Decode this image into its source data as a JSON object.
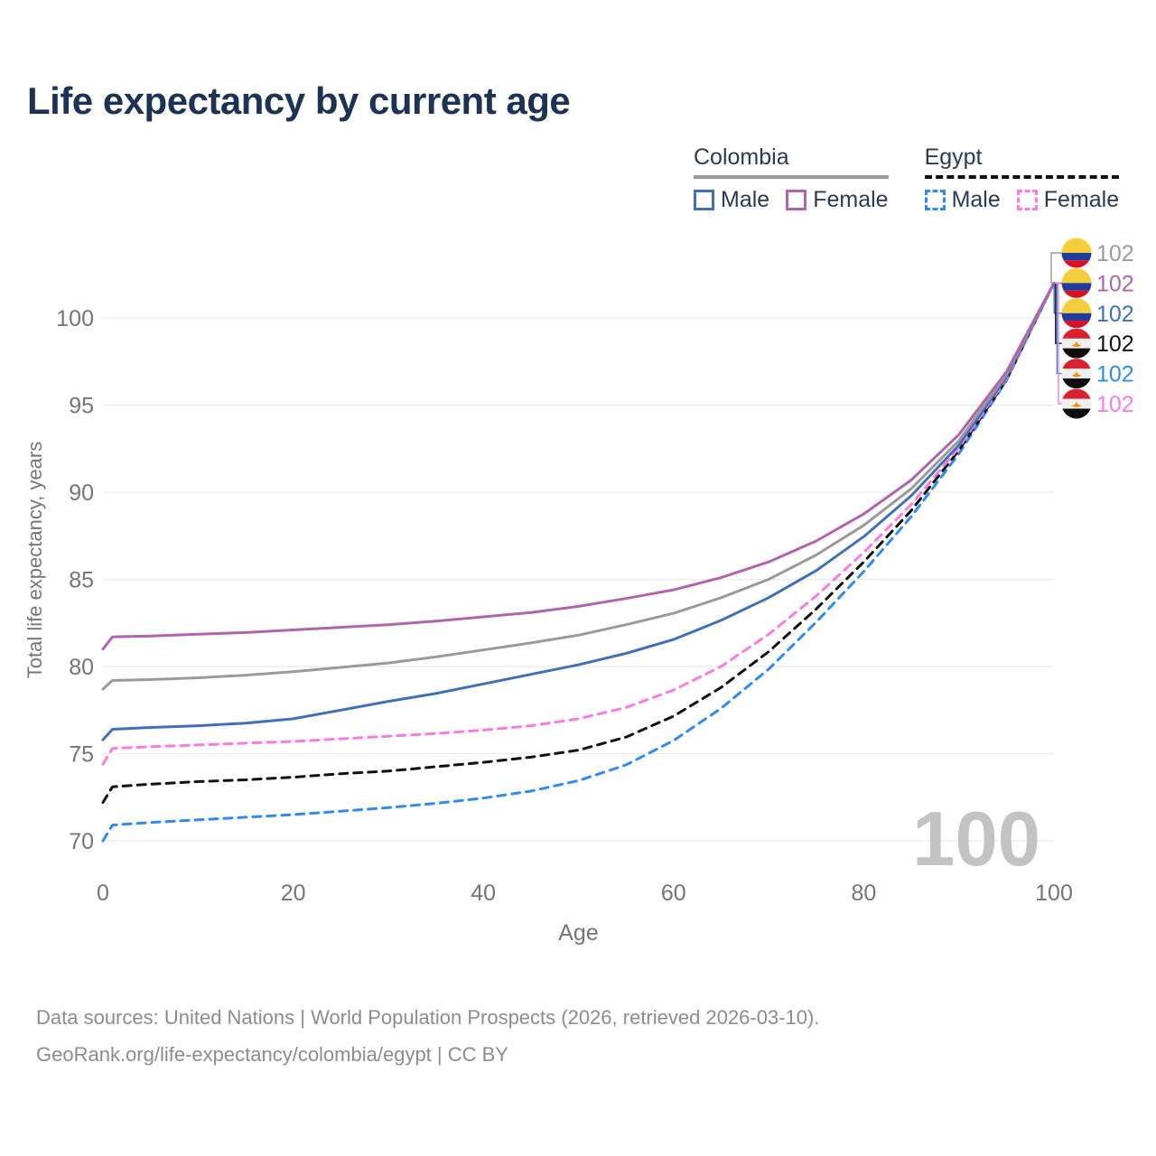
{
  "title": "Life expectancy by current age",
  "legend": {
    "groups": [
      {
        "name": "Colombia",
        "line_style": "solid",
        "line_color": "#9a9a9a",
        "items": [
          {
            "label": "Male",
            "color": "#4170b8",
            "dashed": false
          },
          {
            "label": "Female",
            "color": "#b164ac",
            "dashed": false
          }
        ]
      },
      {
        "name": "Egypt",
        "line_style": "dashed",
        "line_color": "#111111",
        "items": [
          {
            "label": "Male",
            "color": "#2f8af5",
            "dashed": true
          },
          {
            "label": "Female",
            "color": "#fb7be0",
            "dashed": true
          }
        ]
      }
    ]
  },
  "age_counter": "100",
  "axes": {
    "x": {
      "label": "Age",
      "ticks": [
        0,
        20,
        40,
        60,
        80,
        100
      ],
      "range": [
        0,
        100
      ],
      "grid": false
    },
    "y": {
      "label": "Total life expectancy, years",
      "ticks": [
        70,
        75,
        80,
        85,
        90,
        95,
        100
      ],
      "range": [
        69,
        103
      ],
      "grid": true
    }
  },
  "chart_data": {
    "type": "line",
    "title": "Life expectancy by current age",
    "xlabel": "Age",
    "ylabel": "Total life expectancy, years",
    "xlim": [
      0,
      100
    ],
    "ylim": [
      69,
      103
    ],
    "legend_position": "top-right",
    "x": [
      0,
      1,
      5,
      10,
      15,
      20,
      25,
      30,
      35,
      40,
      45,
      50,
      55,
      60,
      65,
      70,
      75,
      80,
      85,
      90,
      95,
      100
    ],
    "series": [
      {
        "name": "Egypt Male",
        "color": "#2f8af5",
        "dashed": true,
        "values": [
          70.0,
          70.9,
          71.05,
          71.2,
          71.35,
          71.5,
          71.7,
          71.9,
          72.15,
          72.45,
          72.85,
          73.45,
          74.35,
          75.75,
          77.6,
          79.85,
          82.55,
          85.45,
          88.6,
          92.2,
          96.4,
          102
        ]
      },
      {
        "name": "Egypt",
        "color": "#111111",
        "dashed": true,
        "values": [
          72.2,
          73.1,
          73.25,
          73.4,
          73.5,
          73.65,
          73.85,
          74.0,
          74.25,
          74.5,
          74.8,
          75.2,
          75.95,
          77.15,
          78.8,
          80.85,
          83.3,
          86.0,
          88.95,
          92.4,
          96.45,
          102
        ]
      },
      {
        "name": "Egypt Female",
        "color": "#fb7be0",
        "dashed": true,
        "values": [
          74.4,
          75.3,
          75.4,
          75.5,
          75.6,
          75.7,
          75.85,
          76.0,
          76.15,
          76.35,
          76.6,
          77.0,
          77.65,
          78.65,
          80.0,
          81.85,
          84.05,
          86.55,
          89.3,
          92.55,
          96.5,
          102
        ]
      },
      {
        "name": "Colombia Male",
        "color": "#4170b8",
        "dashed": false,
        "values": [
          75.8,
          76.4,
          76.5,
          76.6,
          76.75,
          77.0,
          77.5,
          78.0,
          78.45,
          79.0,
          79.55,
          80.1,
          80.75,
          81.55,
          82.65,
          83.95,
          85.5,
          87.45,
          89.8,
          92.7,
          96.6,
          102
        ]
      },
      {
        "name": "Colombia",
        "color": "#9a9a9a",
        "dashed": false,
        "values": [
          78.7,
          79.2,
          79.25,
          79.35,
          79.5,
          79.7,
          79.95,
          80.2,
          80.55,
          80.95,
          81.35,
          81.8,
          82.4,
          83.05,
          83.95,
          85.0,
          86.4,
          88.1,
          90.2,
          92.95,
          96.75,
          102
        ]
      },
      {
        "name": "Colombia Female",
        "color": "#b164ac",
        "dashed": false,
        "values": [
          81.0,
          81.7,
          81.75,
          81.85,
          81.95,
          82.1,
          82.25,
          82.4,
          82.6,
          82.85,
          83.1,
          83.45,
          83.9,
          84.4,
          85.1,
          86.0,
          87.2,
          88.75,
          90.7,
          93.3,
          96.9,
          102
        ]
      }
    ],
    "end_labels": [
      {
        "series": "Colombia",
        "value": "102",
        "color": "#9a9a9a",
        "flag": "colombia"
      },
      {
        "series": "Colombia Female",
        "value": "102",
        "color": "#b164ac",
        "flag": "colombia"
      },
      {
        "series": "Colombia Male",
        "value": "102",
        "color": "#4170b8",
        "flag": "colombia"
      },
      {
        "series": "Egypt",
        "value": "102",
        "color": "#111111",
        "flag": "egypt"
      },
      {
        "series": "Egypt Male",
        "value": "102",
        "color": "#2f8af5",
        "flag": "egypt"
      },
      {
        "series": "Egypt Female",
        "value": "102",
        "color": "#fb7be0",
        "flag": "egypt"
      }
    ]
  },
  "flag_colors": {
    "colombia": {
      "yellow": "#f5ce3e",
      "blue": "#1f3c9e",
      "red": "#d61126"
    },
    "egypt": {
      "red": "#d8232f",
      "white": "#efefef",
      "black": "#0d0d0d",
      "gold": "#e8960f"
    }
  },
  "colors": {
    "title": "#1d3354",
    "legend_text": "#2b3a55",
    "axis_text": "#757575",
    "gridline": "#ebebeb",
    "age_counter": "#c3c3c3",
    "footer_text": "#8c8c8c"
  },
  "footer": {
    "line1": "Data sources: United Nations | World Population Prospects (2026, retrieved 2026-03-10).",
    "line2": "GeoRank.org/life-expectancy/colombia/egypt | CC BY"
  }
}
